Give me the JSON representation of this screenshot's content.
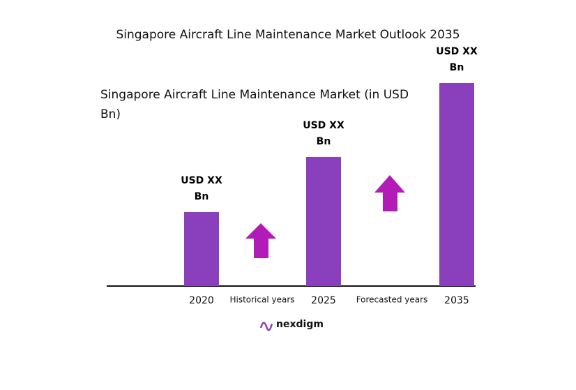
{
  "chart_data": {
    "type": "bar",
    "title": "Singapore Aircraft Line Maintenance Market Outlook 2035",
    "subtitle": "Singapore Aircraft Line Maintenance Market (in USD Bn)",
    "categories": [
      "2020",
      "2025",
      "2035"
    ],
    "values": [
      1.06,
      1.85,
      2.91
    ],
    "value_labels": [
      "USD XX Bn",
      "USD XX Bn",
      "USD XX Bn"
    ],
    "color": "#8a40bd",
    "annotations": [
      "Historical years",
      "Forecasted years"
    ],
    "logo": "nexdigm"
  }
}
